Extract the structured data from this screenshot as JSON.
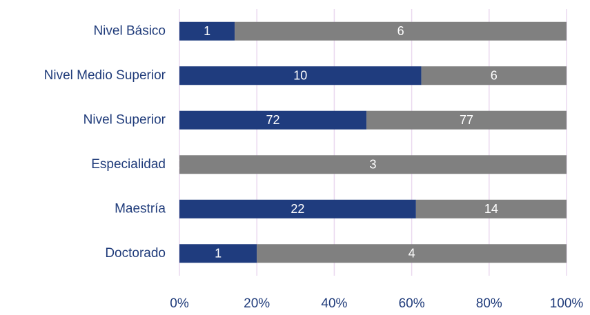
{
  "chart_data": {
    "type": "bar",
    "orientation": "horizontal",
    "stacking": "percent",
    "categories": [
      "Nivel Básico",
      "Nivel Medio Superior",
      "Nivel Superior",
      "Especialidad",
      "Maestría",
      "Doctorado"
    ],
    "series": [
      {
        "color": "#1f3c7e",
        "values": [
          1,
          10,
          72,
          0,
          22,
          1
        ]
      },
      {
        "color": "#808080",
        "values": [
          6,
          6,
          77,
          3,
          14,
          4
        ]
      }
    ],
    "xlim": [
      0,
      100
    ],
    "xticks": [
      {
        "value": 0,
        "label": "0%"
      },
      {
        "value": 20,
        "label": "20%"
      },
      {
        "value": 40,
        "label": "40%"
      },
      {
        "value": 60,
        "label": "60%"
      },
      {
        "value": 80,
        "label": "80%"
      },
      {
        "value": 100,
        "label": "100%"
      }
    ],
    "grid": true
  }
}
